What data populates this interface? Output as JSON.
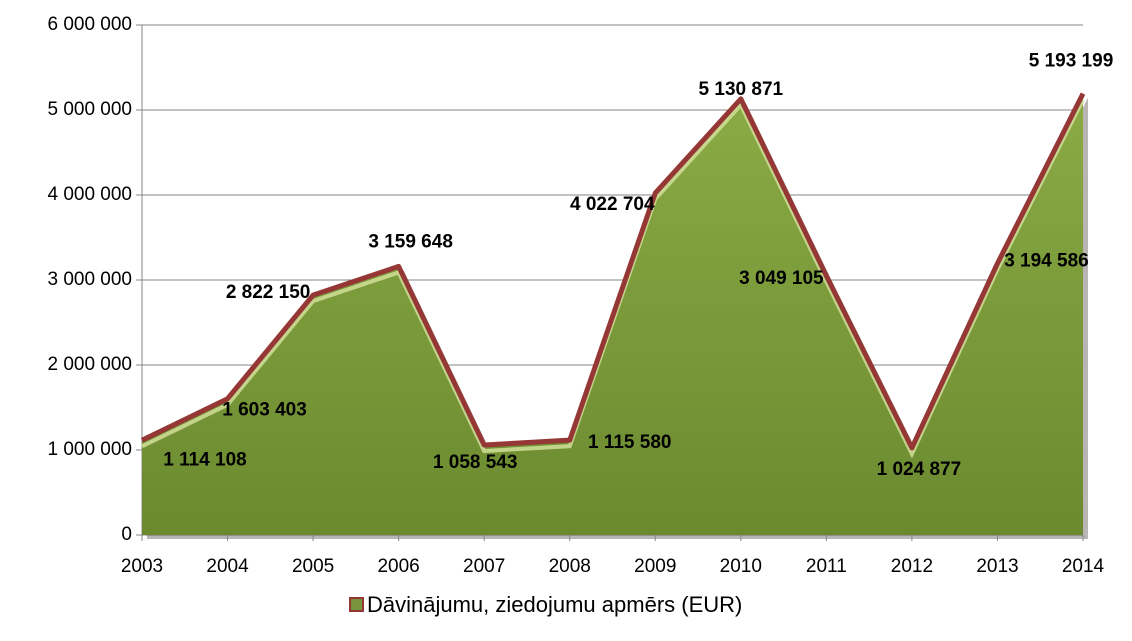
{
  "chart_data": {
    "type": "area",
    "categories": [
      "2003",
      "2004",
      "2005",
      "2006",
      "2007",
      "2008",
      "2009",
      "2010",
      "2011",
      "2012",
      "2013",
      "2014"
    ],
    "series": [
      {
        "name": "Dāvinājumu, ziedojumu apmērs (EUR)",
        "color": "#77933c",
        "edge_color": "#953735",
        "values": [
          1114108,
          1603403,
          2822150,
          3159648,
          1058543,
          1115580,
          4022704,
          5130871,
          3049105,
          1024877,
          3194586,
          5193199
        ],
        "value_labels": [
          "1 114 108",
          "1 603 403",
          "2 822 150",
          "3 159 648",
          "1 058 543",
          "1 115 580",
          "4 022 704",
          "5 130 871",
          "3 049 105",
          "1 024 877",
          "3 194 586",
          "5 193 199"
        ]
      }
    ],
    "ylim": [
      0,
      6000000
    ],
    "yticks": [
      0,
      {
        "value": 1000000,
        "label": "1 000 000"
      },
      {
        "value": 2000000,
        "label": "2 000 000"
      },
      {
        "value": 3000000,
        "label": "3 000 000"
      },
      {
        "value": 4000000,
        "label": "4 000 000"
      },
      {
        "value": 5000000,
        "label": "5 000 000"
      },
      {
        "value": 6000000,
        "label": "6 000 000"
      }
    ],
    "grid": true,
    "legend": "bottom"
  }
}
